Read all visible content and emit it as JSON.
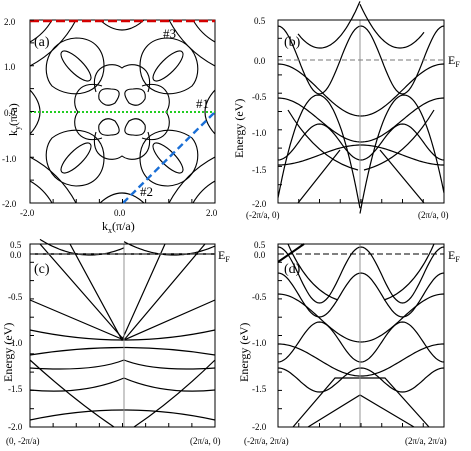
{
  "panels": {
    "a": {
      "label": "(a)",
      "xlabel": "k",
      "xlabel_sub": "x",
      "xlabel_unit": "(π/a)",
      "ylabel": "k",
      "ylabel_sub": "y",
      "ylabel_unit": "(π/a)",
      "xticks": [
        "-2.0",
        "0.0",
        "2.0"
      ],
      "yticks": [
        "2.0",
        "1.0",
        "0.0",
        "-1.0",
        "-2.0"
      ],
      "paths": [
        "#1",
        "#2",
        "#3"
      ],
      "path_colors": [
        "#d40000",
        "#22cc22",
        "#1a6fd6"
      ]
    },
    "b": {
      "label": "(b)",
      "ylabel": "Energy (eV)",
      "ef": "E",
      "ef_sub": "F",
      "x_left": "(-2π/a, 0)",
      "x_right": "(2π/a, 0)",
      "yticks": [
        "0.5",
        "0.0",
        "-0.5",
        "-1.0",
        "-1.5",
        "-2.0"
      ]
    },
    "c": {
      "label": "(c)",
      "ylabel": "Energy (eV)",
      "ef": "E",
      "ef_sub": "F",
      "x_left": "(0, -2π/a)",
      "x_right": "(2π/a, 0)",
      "yticks": [
        "0.5",
        "0.0",
        "-0.5",
        "-1.0",
        "-1.5",
        "-2.0"
      ]
    },
    "d": {
      "label": "(d)",
      "ylabel": "Energy (eV)",
      "ef": "E",
      "ef_sub": "F",
      "x_left": "(-2π/a, 2π/a)",
      "x_right": "(2π/a, 2π/a)",
      "yticks": [
        "0.5",
        "0.0",
        "-0.5",
        "-1.0",
        "-1.5",
        "-2.0"
      ]
    }
  },
  "chart_data": [
    {
      "type": "line",
      "panel": "a",
      "title": "",
      "xlabel": "kx(π/a)",
      "ylabel": "ky(π/a)",
      "xlim": [
        -2.0,
        2.0
      ],
      "ylim": [
        -2.0,
        2.0
      ],
      "series": [
        {
          "name": "#1",
          "x": [
            -2.0,
            2.0
          ],
          "y": [
            0.0,
            0.0
          ]
        },
        {
          "name": "#2",
          "x": [
            0.0,
            2.0
          ],
          "y": [
            -2.0,
            0.0
          ]
        },
        {
          "name": "#3",
          "x": [
            -2.0,
            2.0
          ],
          "y": [
            2.0,
            2.0
          ]
        }
      ]
    },
    {
      "type": "line",
      "panel": "b",
      "ylabel": "Energy (eV)",
      "ylim": [
        -2.0,
        0.5
      ],
      "x": [
        "(-2π/a, 0)",
        "(2π/a, 0)"
      ],
      "fermi_level": 0.0,
      "series": []
    },
    {
      "type": "line",
      "panel": "c",
      "ylabel": "Energy (eV)",
      "ylim": [
        -2.0,
        0.5
      ],
      "x": [
        "(0, -2π/a)",
        "(2π/a, 0)"
      ],
      "fermi_level": 0.0,
      "series": []
    },
    {
      "type": "line",
      "panel": "d",
      "ylabel": "Energy (eV)",
      "ylim": [
        -2.0,
        0.5
      ],
      "x": [
        "(-2π/a, 2π/a)",
        "(2π/a, 2π/a)"
      ],
      "fermi_level": 0.0,
      "series": []
    }
  ]
}
